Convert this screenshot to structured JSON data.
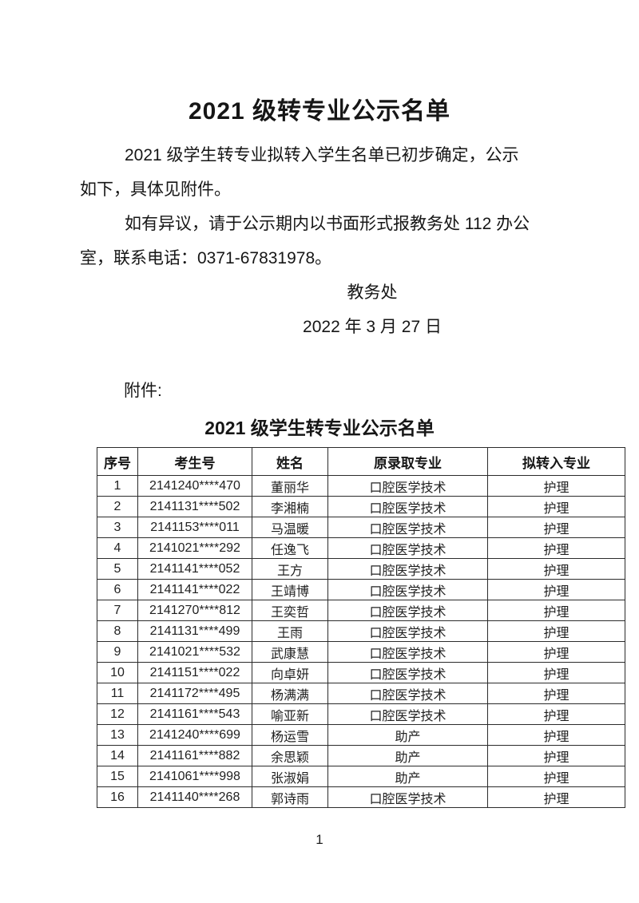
{
  "document": {
    "title": "2021 级转专业公示名单",
    "paragraphs": [
      {
        "lines": [
          "2021 级学生转专业拟转入学生名单已初步确定，公示",
          "如下，具体见附件。"
        ]
      },
      {
        "lines": [
          "如有异议，请于公示期内以书面形式报教务处 112 办公",
          "室，联系电话：0371-67831978。"
        ]
      }
    ],
    "signature": "教务处",
    "date": "2022 年 3 月 27 日",
    "attachment_label": "附件:",
    "table_title": "2021 级学生转专业公示名单",
    "page_number": "1"
  },
  "table": {
    "headers": [
      "序号",
      "考生号",
      "姓名",
      "原录取专业",
      "拟转入专业"
    ],
    "rows": [
      [
        "1",
        "2141240****470",
        "董丽华",
        "口腔医学技术",
        "护理"
      ],
      [
        "2",
        "2141131****502",
        "李湘楠",
        "口腔医学技术",
        "护理"
      ],
      [
        "3",
        "2141153****011",
        "马温暖",
        "口腔医学技术",
        "护理"
      ],
      [
        "4",
        "2141021****292",
        "任逸飞",
        "口腔医学技术",
        "护理"
      ],
      [
        "5",
        "2141141****052",
        "王方",
        "口腔医学技术",
        "护理"
      ],
      [
        "6",
        "2141141****022",
        "王靖博",
        "口腔医学技术",
        "护理"
      ],
      [
        "7",
        "2141270****812",
        "王奕哲",
        "口腔医学技术",
        "护理"
      ],
      [
        "8",
        "2141131****499",
        "王雨",
        "口腔医学技术",
        "护理"
      ],
      [
        "9",
        "2141021****532",
        "武康慧",
        "口腔医学技术",
        "护理"
      ],
      [
        "10",
        "2141151****022",
        "向卓妍",
        "口腔医学技术",
        "护理"
      ],
      [
        "11",
        "2141172****495",
        "杨满满",
        "口腔医学技术",
        "护理"
      ],
      [
        "12",
        "2141161****543",
        "喻亚新",
        "口腔医学技术",
        "护理"
      ],
      [
        "13",
        "2141240****699",
        "杨运雪",
        "助产",
        "护理"
      ],
      [
        "14",
        "2141161****882",
        "余思颖",
        "助产",
        "护理"
      ],
      [
        "15",
        "2141061****998",
        "张淑娟",
        "助产",
        "护理"
      ],
      [
        "16",
        "2141140****268",
        "郭诗雨",
        "口腔医学技术",
        "护理"
      ]
    ]
  }
}
